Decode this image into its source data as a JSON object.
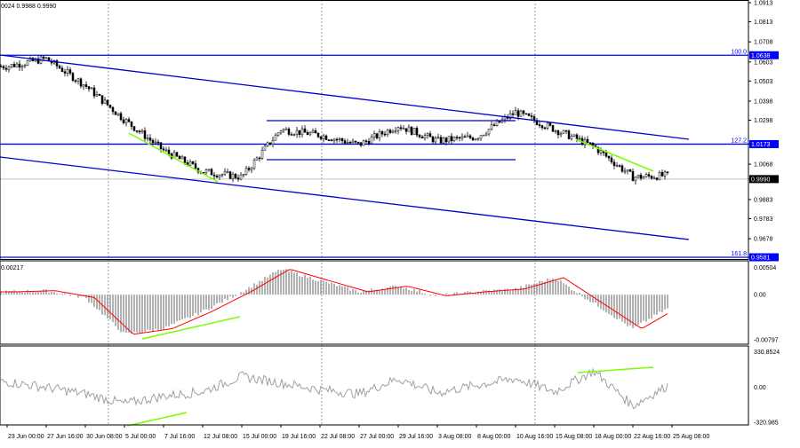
{
  "header": {
    "text": "0024 0.9988 0.9990"
  },
  "chart_data": [
    {
      "type": "candlestick",
      "pane": "price",
      "y_ticks": [
        "1.0913",
        "1.0813",
        "1.0708",
        "1.0603",
        "1.0503",
        "1.0398",
        "1.0298",
        "1.0173",
        "1.0068",
        "0.9990",
        "0.9883",
        "0.9783",
        "0.9678",
        "0.9581"
      ],
      "ylim": [
        0.9581,
        1.0913
      ],
      "current_price": "0.9990",
      "fib_levels": [
        {
          "label": "100.0",
          "price": 1.0638,
          "tag": "1.0638"
        },
        {
          "label": "127.2",
          "price": 1.0173,
          "tag": "1.0173"
        },
        {
          "label": "161.8",
          "price": 0.9581,
          "tag": "0.9581"
        }
      ],
      "close_at_ticks": [
        1.058,
        1.062,
        1.048,
        1.03,
        1.014,
        1.003,
        1.0,
        1.025,
        1.022,
        1.017,
        1.027,
        1.019,
        1.021,
        1.034,
        1.025,
        1.016,
        1.0,
        1.001
      ],
      "colors": {
        "channel": "#0000cc",
        "fib": "#0000ff",
        "divergence": "#7cfc00",
        "candles": "#000000"
      }
    },
    {
      "type": "histogram+line",
      "pane": "macd",
      "label": "0.00217",
      "y_ticks": [
        "0.00504",
        "0.00",
        "-0.00797"
      ],
      "ylim": [
        -0.00797,
        0.00504
      ],
      "values_at_ticks": [
        0.0005,
        0.0007,
        -0.0005,
        -0.007,
        -0.006,
        -0.003,
        0.0005,
        0.0045,
        0.0025,
        0.0005,
        0.0015,
        -0.0002,
        0.0005,
        0.001,
        0.003,
        -0.0015,
        -0.006,
        -0.002
      ],
      "colors": {
        "histogram": "#a0a0a0",
        "signal": "#ff0000"
      }
    },
    {
      "type": "line",
      "pane": "cci",
      "y_ticks": [
        "330.8524",
        "0.00",
        "-320.985"
      ],
      "ylim": [
        -320.985,
        330.8524
      ],
      "values_at_ticks": [
        50,
        0,
        -60,
        -150,
        -80,
        -40,
        100,
        40,
        -20,
        -60,
        80,
        -50,
        20,
        80,
        -40,
        150,
        -170,
        40
      ],
      "colors": {
        "line": "#a0a0a0",
        "divergence": "#7cfc00"
      }
    }
  ],
  "x_ticks": [
    "23 Jun 00:00",
    "27 Jun 16:00",
    "30 Jun 08:00",
    "5 Jul 00:00",
    "7 Jul 16:00",
    "12 Jul 08:00",
    "15 Jul 00:00",
    "19 Jul 16:00",
    "22 Jul 08:00",
    "27 Jul 00:00",
    "29 Jul 16:00",
    "3 Aug 08:00",
    "8 Aug 00:00",
    "10 Aug 16:00",
    "15 Aug 08:00",
    "18 Aug 00:00",
    "22 Aug 16:00",
    "25 Aug 08:00"
  ]
}
